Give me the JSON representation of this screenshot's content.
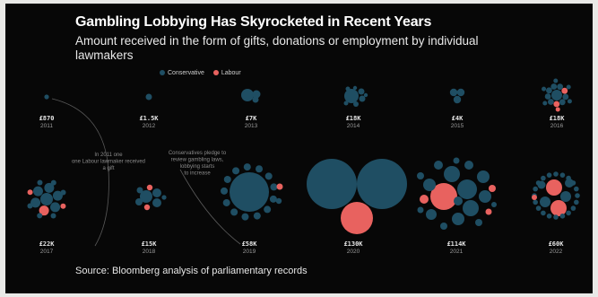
{
  "title": "Gambling Lobbying Has Skyrocketed in Recent Years",
  "subtitle": "Amount received in the form of gifts, donations or employment by individual lawmakers",
  "legend": {
    "conservative": "Conservative",
    "labour": "Labour"
  },
  "source": "Source: Bloomberg analysis of parliamentary records",
  "annotations": {
    "a2011": [
      "In 2011 one",
      "one Labour lawmaker received",
      "a gift"
    ],
    "a2019": [
      "Conservatives pledge to",
      "review gambling laws,",
      "lobbying starts",
      "to increase"
    ]
  },
  "colors": {
    "conservative": "#1f4e63",
    "labour": "#e8625f",
    "background": "#070707"
  },
  "chart_data": {
    "type": "bubble",
    "unit": "GBP",
    "series": [
      {
        "name": "Conservative",
        "color": "#1f4e63"
      },
      {
        "name": "Labour",
        "color": "#e8625f"
      }
    ],
    "points": [
      {
        "year": "2011",
        "label": "£870",
        "total": 870
      },
      {
        "year": "2012",
        "label": "£1.5K",
        "total": 1500
      },
      {
        "year": "2013",
        "label": "£7K",
        "total": 7000
      },
      {
        "year": "2014",
        "label": "£18K",
        "total": 18000
      },
      {
        "year": "2015",
        "label": "£4K",
        "total": 4000
      },
      {
        "year": "2016",
        "label": "£18K",
        "total": 18000
      },
      {
        "year": "2017",
        "label": "£22K",
        "total": 22000
      },
      {
        "year": "2018",
        "label": "£15K",
        "total": 15000
      },
      {
        "year": "2019",
        "label": "£58K",
        "total": 58000
      },
      {
        "year": "2020",
        "label": "£130K",
        "total": 130000
      },
      {
        "year": "2021",
        "label": "£114K",
        "total": 114000
      },
      {
        "year": "2022",
        "label": "£60K",
        "total": 60000
      }
    ]
  }
}
